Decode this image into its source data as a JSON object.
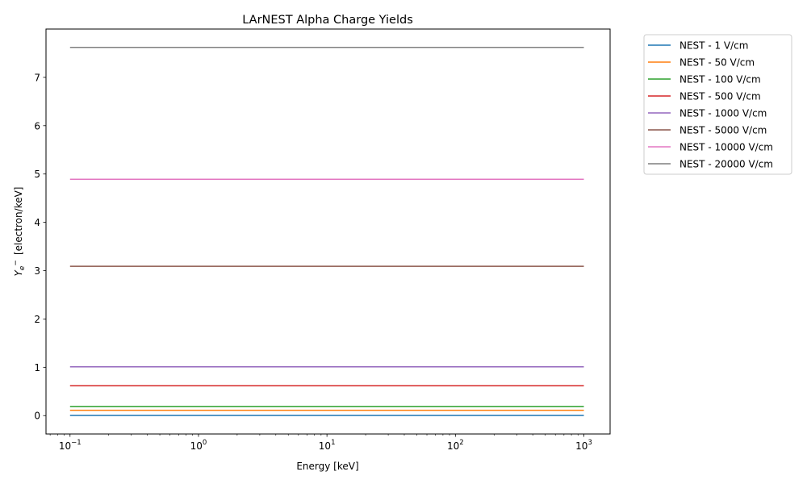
{
  "chart_data": {
    "type": "line",
    "title": "LArNEST Alpha Charge Yields",
    "xlabel": "Energy [keV]",
    "ylabel_symbol": "Y",
    "ylabel_subscript": "e",
    "ylabel_superscript": "−",
    "ylabel_unit": "[electron/keV]",
    "xscale": "log",
    "xlim": [
      0.065,
      1600
    ],
    "ylim": [
      -0.38,
      8.0
    ],
    "x": [
      0.1,
      1000
    ],
    "x_ticks": [
      {
        "value": 0.1,
        "base": "10",
        "exp": "−1"
      },
      {
        "value": 1,
        "base": "10",
        "exp": "0"
      },
      {
        "value": 10,
        "base": "10",
        "exp": "1"
      },
      {
        "value": 100,
        "base": "10",
        "exp": "2"
      },
      {
        "value": 1000,
        "base": "10",
        "exp": "3"
      }
    ],
    "y_ticks": [
      {
        "value": 0,
        "label": "0"
      },
      {
        "value": 1,
        "label": "1"
      },
      {
        "value": 2,
        "label": "2"
      },
      {
        "value": 3,
        "label": "3"
      },
      {
        "value": 4,
        "label": "4"
      },
      {
        "value": 5,
        "label": "5"
      },
      {
        "value": 6,
        "label": "6"
      },
      {
        "value": 7,
        "label": "7"
      }
    ],
    "grid": false,
    "legend": "outside-right",
    "series": [
      {
        "name": "NEST - 1 V/cm",
        "color": "#1f77b4",
        "values": [
          0.003,
          0.003
        ]
      },
      {
        "name": "NEST - 50 V/cm",
        "color": "#ff7f0e",
        "values": [
          0.11,
          0.11
        ]
      },
      {
        "name": "NEST - 100 V/cm",
        "color": "#2ca02c",
        "values": [
          0.19,
          0.19
        ]
      },
      {
        "name": "NEST - 500 V/cm",
        "color": "#d62728",
        "values": [
          0.62,
          0.62
        ]
      },
      {
        "name": "NEST - 1000 V/cm",
        "color": "#9467bd",
        "values": [
          1.01,
          1.01
        ]
      },
      {
        "name": "NEST - 5000 V/cm",
        "color": "#8c564b",
        "values": [
          3.09,
          3.09
        ]
      },
      {
        "name": "NEST - 10000 V/cm",
        "color": "#e377c2",
        "values": [
          4.89,
          4.89
        ]
      },
      {
        "name": "NEST - 20000 V/cm",
        "color": "#7f7f7f",
        "values": [
          7.62,
          7.62
        ]
      }
    ]
  }
}
